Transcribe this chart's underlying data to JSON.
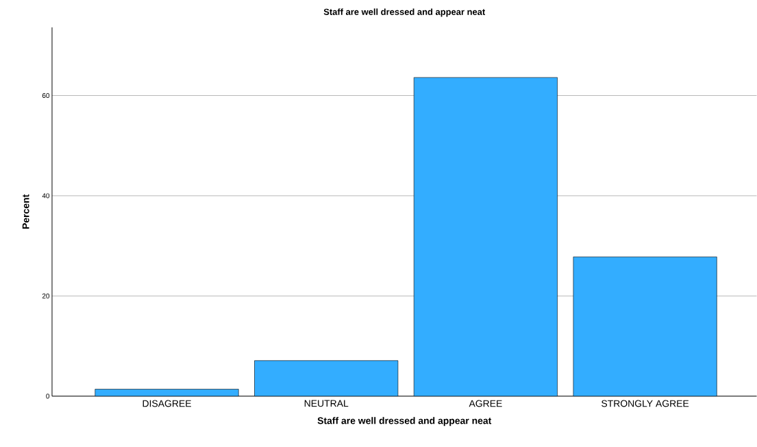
{
  "chart_data": {
    "type": "bar",
    "title": "Staff are well dressed and appear neat",
    "xlabel": "Staff are well dressed and appear neat",
    "ylabel": "Percent",
    "categories": [
      "DISAGREE",
      "NEUTRAL",
      "AGREE",
      "STRONGLY AGREE"
    ],
    "values": [
      1.4,
      7.1,
      63.6,
      27.8
    ],
    "color": "#33adff",
    "ylim": [
      0,
      73.6
    ],
    "yticks": [
      0,
      20,
      40,
      60
    ],
    "grid": "y"
  }
}
